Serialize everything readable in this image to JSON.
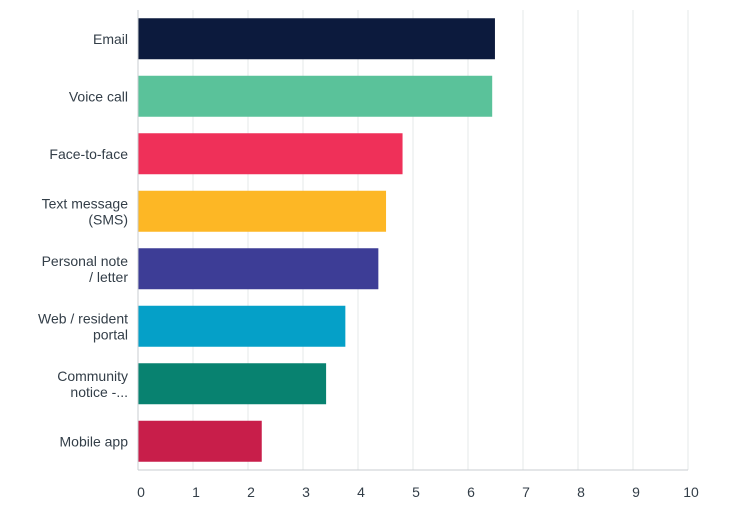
{
  "chart_data": {
    "type": "bar",
    "orientation": "horizontal",
    "categories": [
      [
        "Email"
      ],
      [
        "Voice call"
      ],
      [
        "Face-to-face"
      ],
      [
        "Text message",
        "(SMS)"
      ],
      [
        "Personal note",
        "/ letter"
      ],
      [
        "Web / resident",
        "portal"
      ],
      [
        "Community",
        "notice -..."
      ],
      [
        "Mobile app"
      ]
    ],
    "values": [
      6.49,
      6.44,
      4.81,
      4.51,
      4.37,
      3.77,
      3.42,
      2.25
    ],
    "colors": [
      "#0c1a3d",
      "#5ac29a",
      "#ef3059",
      "#fdb725",
      "#3d3d96",
      "#05a0c8",
      "#088270",
      "#c81e4a"
    ],
    "xlim": [
      0,
      10
    ],
    "xticks": [
      "0",
      "1",
      "2",
      "3",
      "4",
      "5",
      "6",
      "7",
      "8",
      "9",
      "10"
    ],
    "grid": true,
    "title": "",
    "xlabel": "",
    "ylabel": ""
  }
}
